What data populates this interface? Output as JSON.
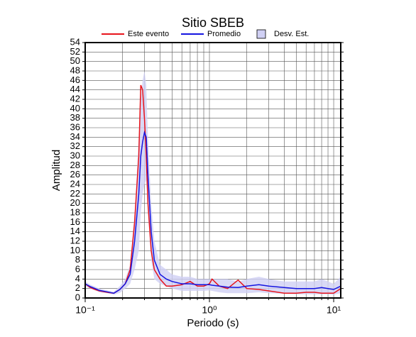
{
  "chart_data": {
    "type": "line",
    "title": "Sitio SBEB",
    "xlabel": "Periodo (s)",
    "ylabel": "Amplitud",
    "xscale": "log",
    "grid": true,
    "legend": "top",
    "x": [
      0.1,
      0.11,
      0.12,
      0.13,
      0.15,
      0.17,
      0.19,
      0.21,
      0.23,
      0.25,
      0.27,
      0.28,
      0.29,
      0.3,
      0.31,
      0.32,
      0.34,
      0.36,
      0.4,
      0.45,
      0.5,
      0.6,
      0.7,
      0.8,
      0.9,
      1,
      1.05,
      1.2,
      1.4,
      1.7,
      2,
      2.5,
      3,
      4,
      5,
      6,
      7,
      8,
      9,
      10,
      11.4
    ],
    "series": [
      {
        "name": "Este evento",
        "color": "#e8141c",
        "values": [
          3,
          2.2,
          1.8,
          1.5,
          1.2,
          1.0,
          1.8,
          3,
          6,
          16,
          30,
          45,
          44,
          38,
          30,
          20,
          10,
          6,
          4,
          2.5,
          2.5,
          2.8,
          3.5,
          2.5,
          2.5,
          3,
          4,
          2.5,
          2,
          3.8,
          2,
          1.8,
          1.5,
          1.0,
          1.0,
          1.2,
          1.2,
          1.0,
          1.0,
          1.0,
          2
        ]
      },
      {
        "name": "Promedio",
        "color": "#1414e0",
        "values": [
          3,
          2.4,
          2,
          1.6,
          1.3,
          1.0,
          1.8,
          3,
          5,
          12,
          22,
          30,
          33,
          35,
          34,
          26,
          14,
          8,
          5,
          4,
          3.5,
          3,
          3,
          2.8,
          2.8,
          2.8,
          2.7,
          2.5,
          2.3,
          2.2,
          2.5,
          2.8,
          2.5,
          2.2,
          2,
          2,
          2,
          2.2,
          2,
          1.8,
          2.5
        ]
      }
    ],
    "band": {
      "name": "Desv. Est.",
      "color": "#d0d0f4",
      "upper": [
        3.5,
        2.8,
        2.4,
        2,
        1.6,
        1.3,
        2.5,
        4,
        7,
        18,
        34,
        42,
        46,
        48,
        45,
        34,
        20,
        12,
        7,
        6,
        5,
        4.5,
        4.5,
        4,
        4,
        4,
        4,
        4,
        4,
        3.5,
        4,
        4.5,
        4,
        3.5,
        3.5,
        3.5,
        3.5,
        4,
        3.5,
        3,
        4.5
      ],
      "lower": [
        2.5,
        2,
        1.6,
        1.2,
        1,
        0.7,
        1.1,
        2,
        3,
        6,
        10,
        18,
        22,
        24,
        25,
        18,
        8,
        4,
        3,
        2.5,
        2,
        1.5,
        1.5,
        1.5,
        1.5,
        1.6,
        1.5,
        1.2,
        1,
        1,
        1,
        1.2,
        1,
        0.9,
        0.8,
        0.8,
        0.8,
        0.8,
        0.8,
        0.7,
        1
      ]
    },
    "xlim": [
      0.1,
      11.4
    ],
    "xticks": [
      {
        "value": 0.1,
        "label": "10⁻¹"
      },
      {
        "value": 1,
        "label": "10⁰"
      },
      {
        "value": 10,
        "label": "10¹"
      }
    ],
    "xminor": [
      0.2,
      0.3,
      0.4,
      0.5,
      0.6,
      0.7,
      0.8,
      0.9,
      2,
      3,
      4,
      5,
      6,
      7,
      8,
      9
    ],
    "ylim": [
      0,
      54
    ],
    "yticks": [
      0,
      2,
      4,
      6,
      8,
      10,
      12,
      14,
      16,
      18,
      20,
      22,
      24,
      26,
      28,
      30,
      32,
      34,
      36,
      38,
      40,
      42,
      44,
      46,
      48,
      50,
      52,
      54
    ]
  }
}
